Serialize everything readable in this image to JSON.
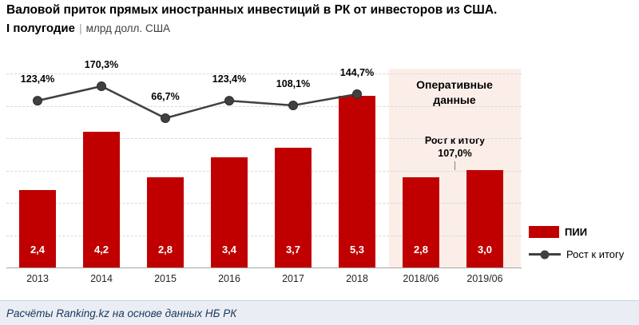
{
  "header": {
    "title": "Валовой приток прямых иностранных инвестиций в РК от инвесторов из США.",
    "subtitle_bold": "I полугодие",
    "subtitle_sep": "|",
    "subtitle_unit": "млрд долл. США"
  },
  "chart_data": {
    "type": "bar",
    "title": "Валовой приток прямых иностранных инвестиций в РК от инвесторов из США. I полугодие, млрд долл. США",
    "xlabel": "",
    "ylabel": "",
    "ylim": [
      0,
      6
    ],
    "grid": true,
    "legend_position": "right",
    "categories": [
      "2013",
      "2014",
      "2015",
      "2016",
      "2017",
      "2018",
      "2018/06",
      "2019/06"
    ],
    "series": [
      {
        "name": "ПИИ",
        "type": "bar",
        "color": "#C00000",
        "values": [
          2.4,
          4.2,
          2.8,
          3.4,
          3.7,
          5.3,
          2.8,
          3.0
        ],
        "labels": [
          "2,4",
          "4,2",
          "2,8",
          "3,4",
          "3,7",
          "5,3",
          "2,8",
          "3,0"
        ]
      },
      {
        "name": "Рост к итогу",
        "type": "line",
        "color": "#404040",
        "values": [
          123.4,
          170.3,
          66.7,
          123.4,
          108.1,
          144.7,
          null,
          107.0
        ],
        "labels": [
          "123,4%",
          "170,3%",
          "66,7%",
          "123,4%",
          "108,1%",
          "144,7%"
        ]
      }
    ],
    "annotations": {
      "operational_label": "Оперативные данные",
      "growth_callout_line1": "Рост к итогу",
      "growth_callout_line2": "107,0%"
    },
    "legend": [
      {
        "label": "ПИИ",
        "swatch": "bar",
        "color": "#C00000"
      },
      {
        "label": "Рост к итогу",
        "swatch": "line-dot",
        "color": "#404040"
      }
    ]
  },
  "footer": {
    "text": "Расчёты Ranking.kz на основе данных НБ РК"
  }
}
